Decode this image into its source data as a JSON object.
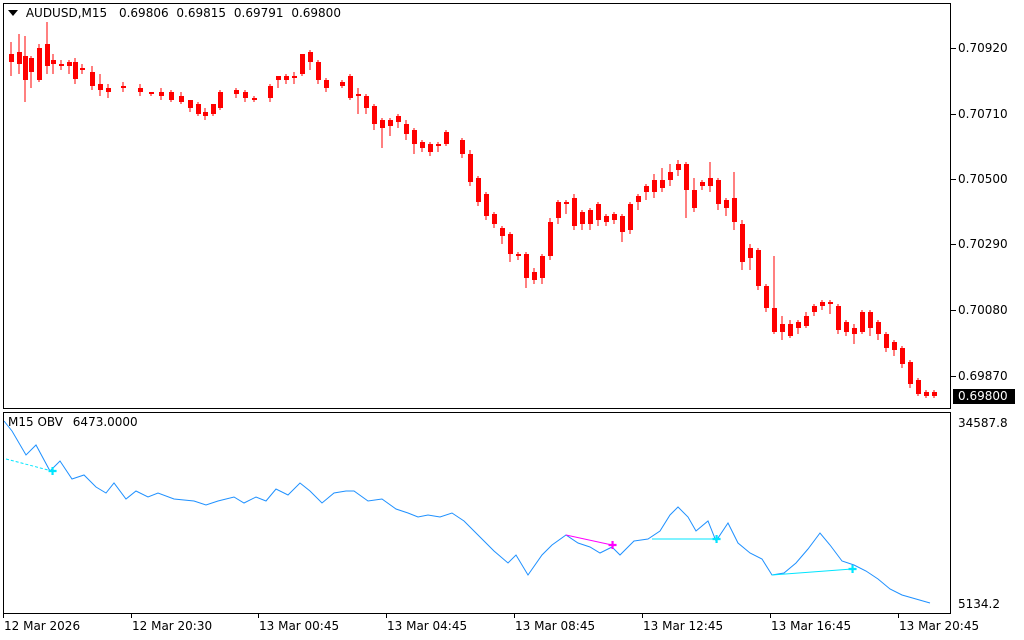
{
  "chart": {
    "symbol_label": "AUDUSD,M15",
    "ohlc": {
      "open": "0.69806",
      "high": "0.69815",
      "low": "0.69791",
      "close": "0.69800"
    },
    "current_price": "0.69800",
    "price_axis_labels": [
      "0.70920",
      "0.70710",
      "0.70500",
      "0.70290",
      "0.70080",
      "0.69870"
    ],
    "colors": {
      "bull": "#000000",
      "bear": "#ff0000",
      "doji": "#00aa00",
      "background": "#ffffff"
    }
  },
  "indicator": {
    "label": "M15 OBV",
    "value": "6473.0000",
    "axis_max": "34587.8",
    "axis_min": "5134.2",
    "line_color": "#1e90ff",
    "divergence_colors": {
      "bearish": "#ff00ff",
      "bullish": "#00e5ff"
    }
  },
  "time_axis_labels": [
    "12 Mar 2026",
    "12 Mar 20:30",
    "13 Mar 00:45",
    "13 Mar 04:45",
    "13 Mar 08:45",
    "13 Mar 12:45",
    "13 Mar 16:45",
    "13 Mar 20:45"
  ]
}
